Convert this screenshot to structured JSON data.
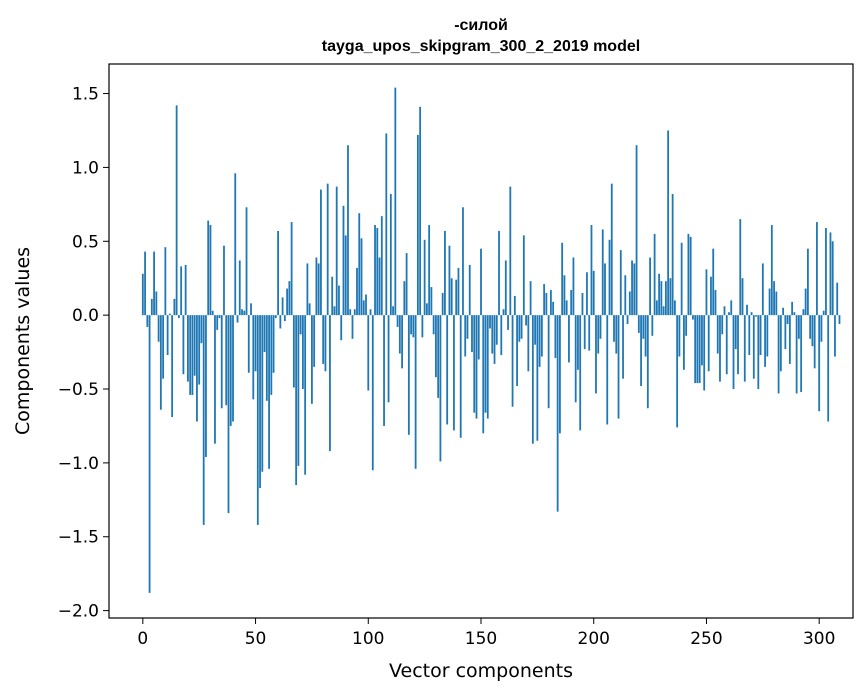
{
  "chart_data": {
    "type": "bar",
    "title_line1": "-силой",
    "title_line2": "tayga_upos_skipgram_300_2_2019 model",
    "xlabel": "Vector components",
    "ylabel": "Components values",
    "xlim": [
      -15,
      315
    ],
    "ylim": [
      -2.05,
      1.7
    ],
    "xticks": [
      0,
      50,
      100,
      150,
      200,
      250,
      300
    ],
    "yticks": [
      -2.0,
      -1.5,
      -1.0,
      -0.5,
      0.0,
      0.5,
      1.0,
      1.5
    ],
    "xtick_labels": [
      "0",
      "50",
      "100",
      "150",
      "200",
      "250",
      "300"
    ],
    "ytick_labels": [
      "−2.0",
      "−1.5",
      "−1.0",
      "−0.5",
      "0.0",
      "0.5",
      "1.0",
      "1.5"
    ],
    "bar_color": "#1f77b4",
    "grid": false,
    "values": [
      0.28,
      0.43,
      -0.08,
      -1.88,
      0.11,
      0.43,
      0.16,
      -0.18,
      -0.64,
      -0.43,
      0.46,
      -0.27,
      0.01,
      -0.69,
      0.11,
      1.42,
      -0.02,
      0.33,
      -0.4,
      0.34,
      -0.45,
      -0.54,
      -0.54,
      -0.41,
      -0.72,
      -0.47,
      -0.19,
      -1.42,
      -0.96,
      0.64,
      0.61,
      0.03,
      -0.87,
      -0.1,
      -0.02,
      -0.63,
      0.47,
      -0.61,
      -1.34,
      -0.75,
      -0.72,
      0.96,
      -0.05,
      0.37,
      0.04,
      0.03,
      0.73,
      -0.39,
      0.08,
      -0.57,
      -0.38,
      -1.42,
      -1.17,
      -1.06,
      -0.25,
      -0.58,
      -1.04,
      -0.54,
      -0.39,
      -0.02,
      0.57,
      -0.09,
      0.12,
      -0.04,
      0.18,
      0.23,
      0.63,
      -0.49,
      -1.15,
      -1.02,
      -0.13,
      -0.5,
      -1.08,
      0.35,
      0.08,
      -0.6,
      -0.35,
      0.39,
      0.35,
      0.85,
      -0.33,
      -0.38,
      0.89,
      -0.92,
      0.26,
      0.06,
      0.87,
      0.2,
      -0.17,
      0.74,
      0.54,
      1.15,
      0.04,
      -0.16,
      0.04,
      0.32,
      0.69,
      0.52,
      0.1,
      0.14,
      -0.51,
      0.04,
      -1.05,
      0.61,
      0.59,
      0.39,
      0.67,
      -0.75,
      1.23,
      -0.59,
      0.82,
      0.06,
      1.54,
      -0.08,
      -0.26,
      -0.36,
      0.23,
      0.42,
      -0.81,
      -0.13,
      -0.15,
      -1.04,
      1.22,
      1.41,
      -0.15,
      0.51,
      0.08,
      0.61,
      0.19,
      -0.13,
      -0.42,
      -0.56,
      -0.99,
      0.15,
      0.57,
      -0.74,
      0.47,
      0.25,
      -0.78,
      0.24,
      0.32,
      -0.83,
      0.73,
      -0.28,
      -0.16,
      0.34,
      -0.25,
      -0.66,
      -0.7,
      -0.3,
      0.45,
      -0.8,
      -0.66,
      -0.7,
      -0.09,
      -0.26,
      -0.33,
      -0.2,
      0.57,
      -0.27,
      0.04,
      0.37,
      -0.1,
      0.87,
      -0.62,
      0.13,
      -0.48,
      -0.18,
      -0.16,
      0.54,
      -0.07,
      -0.38,
      0.23,
      -0.87,
      -0.2,
      -0.85,
      -0.35,
      -0.28,
      0.21,
      0.15,
      -0.63,
      0.17,
      0.09,
      -0.29,
      -1.33,
      -0.8,
      0.49,
      0.27,
      0.1,
      -0.32,
      0.17,
      0.39,
      -0.59,
      -0.37,
      -0.78,
      0.15,
      -0.23,
      0.29,
      -0.24,
      0.61,
      0.3,
      -0.53,
      -0.26,
      -0.16,
      0.58,
      0.35,
      -0.74,
      0.51,
      0.89,
      -0.18,
      -0.26,
      -0.7,
      0.44,
      -0.43,
      0.27,
      -0.06,
      0.16,
      0.37,
      0.35,
      1.15,
      -0.12,
      -0.48,
      -0.16,
      -0.28,
      -0.63,
      0.39,
      -0.14,
      0.55,
      0.1,
      0.28,
      0.23,
      0.06,
      0.23,
      1.25,
      0.25,
      0.82,
      0.1,
      -0.76,
      -0.28,
      0.49,
      -0.37,
      -0.14,
      0.55,
      0.53,
      -0.03,
      -0.46,
      -0.46,
      -0.46,
      -0.34,
      -0.51,
      0.31,
      -0.38,
      0.26,
      0.45,
      0.17,
      -0.26,
      -0.45,
      -0.13,
      0.06,
      -0.4,
      0.02,
      0.1,
      -0.5,
      -0.23,
      -0.4,
      0.65,
      0.25,
      -0.45,
      0.07,
      -0.27,
      0.02,
      -0.43,
      -0.01,
      -0.5,
      -0.27,
      0.35,
      -0.35,
      -0.28,
      0.18,
      0.61,
      0.23,
      0.16,
      -0.53,
      -0.38,
      0.05,
      -0.23,
      -0.06,
      -0.33,
      0.09,
      0.02,
      -0.53,
      -0.16,
      -0.52,
      0.04,
      0.18,
      0.45,
      -0.16,
      -0.21,
      -0.36,
      0.63,
      -0.65,
      -0.18,
      0.03,
      0.59,
      -0.72,
      0.56,
      0.5,
      -0.28,
      0.22,
      -0.06
    ]
  }
}
